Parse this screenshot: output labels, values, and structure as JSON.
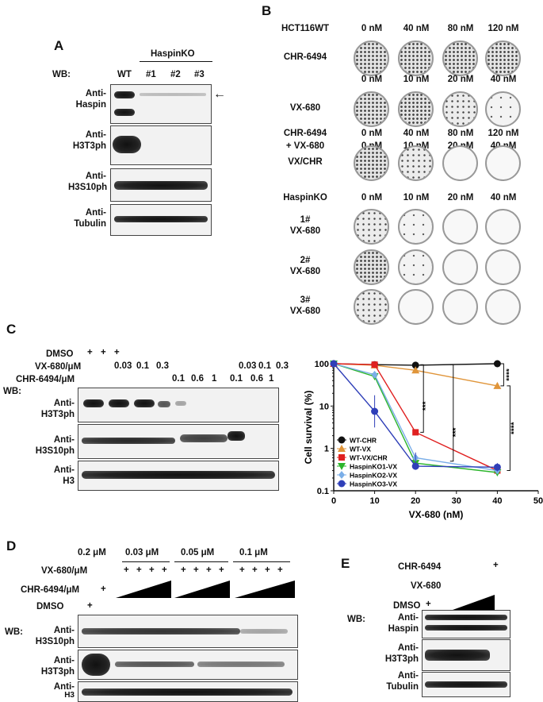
{
  "panels": {
    "A": "A",
    "B": "B",
    "C": "C",
    "D": "D",
    "E": "E"
  },
  "panelA": {
    "group_label": "HaspinKO",
    "lanes": [
      "WT",
      "#1",
      "#2",
      "#3"
    ],
    "wb": "WB:",
    "antibodies": [
      [
        "Anti-",
        "Haspin"
      ],
      [
        "Anti-",
        "H3T3ph"
      ],
      [
        "Anti-",
        "H3S10ph"
      ],
      [
        "Anti-",
        "Tubulin"
      ]
    ],
    "arrow": "←"
  },
  "panelB": {
    "rows": [
      {
        "label": [
          "HCT116WT"
        ],
        "conc": [
          "0 nM",
          "40 nM",
          "80 nM",
          "120 nM"
        ]
      },
      {
        "label": [
          "CHR-6494"
        ],
        "dish": [
          3,
          3,
          3,
          3
        ]
      },
      {
        "label": [],
        "conc": [
          "0 nM",
          "10 nM",
          "20 nM",
          "40 nM"
        ]
      },
      {
        "label": [
          "VX-680"
        ],
        "dish": [
          3,
          3,
          2,
          1
        ]
      },
      {
        "label": [
          "CHR-6494",
          "+ VX-680"
        ],
        "conc": [
          "0 nM",
          "40 nM",
          "80 nM",
          "120 nM"
        ],
        "conc2": [
          "0 nM",
          "10 nM",
          "20 nM",
          "40 nM"
        ]
      },
      {
        "label": [
          "VX/CHR"
        ],
        "dish": [
          3,
          2,
          0,
          0
        ]
      },
      {
        "label": [
          "HaspinKO"
        ],
        "conc": [
          "0 nM",
          "10 nM",
          "20 nM",
          "40 nM"
        ]
      },
      {
        "label": [
          "1#",
          "VX-680"
        ],
        "dish": [
          2,
          1,
          0,
          0
        ]
      },
      {
        "label": [
          "2#",
          "VX-680"
        ],
        "dish": [
          3,
          1,
          0,
          0
        ]
      },
      {
        "label": [
          "3#",
          "VX-680"
        ],
        "dish": [
          2,
          0,
          0,
          0
        ]
      }
    ]
  },
  "panelC": {
    "dmso": "DMSO",
    "vx": "VX-680/μM",
    "chr": "CHR-6494/μM",
    "wb": "WB:",
    "plus": "+",
    "vx_vals": [
      "0.03",
      "0.1",
      "0.3",
      "0.03",
      "0.1",
      "0.3"
    ],
    "chr_vals": [
      "0.1",
      "0.6",
      "1",
      "0.1",
      "0.6",
      "1"
    ],
    "antibodies": [
      [
        "Anti-",
        "H3T3ph"
      ],
      [
        "Anti-",
        "H3S10ph"
      ],
      [
        "Anti-",
        "H3"
      ]
    ]
  },
  "panelD": {
    "top_conc": [
      "0.2 μM",
      "0.03 μM",
      "0.05 μM",
      "0.1 μM"
    ],
    "vx": "VX-680/μM",
    "chr": "CHR-6494/μM",
    "dmso": "DMSO",
    "wb": "WB:",
    "plus": "+",
    "antibodies": [
      [
        "Anti-",
        "H3S10ph"
      ],
      [
        "Anti-",
        "H3T3ph"
      ],
      [
        "Anti-",
        "H3"
      ]
    ]
  },
  "panelE": {
    "chr": "CHR-6494",
    "vx": "VX-680",
    "dmso": "DMSO",
    "wb": "WB:",
    "plus": "+",
    "antibodies": [
      [
        "Anti-",
        "Haspin"
      ],
      [
        "Anti-",
        "H3T3ph"
      ],
      [
        "Anti-",
        "Tubulin"
      ]
    ]
  },
  "chart_data": {
    "type": "line",
    "xlabel": "VX-680 (nM)",
    "ylabel": "Cell survival (%)",
    "xlim": [
      0,
      50
    ],
    "ylim": [
      0.1,
      100
    ],
    "yscale": "log",
    "xticks": [
      0,
      10,
      20,
      30,
      40,
      50
    ],
    "yticks": [
      {
        "v": 0.1,
        "t": "0.1"
      },
      {
        "v": 1,
        "t": "1"
      },
      {
        "v": 10,
        "t": "10"
      },
      {
        "v": 100,
        "t": "100"
      }
    ],
    "legend_position": "lower-left",
    "series": [
      {
        "name": "WT-CHR",
        "color": "#111111",
        "marker": "circle",
        "x": [
          0,
          10,
          20,
          40
        ],
        "y": [
          100,
          95,
          92,
          100
        ]
      },
      {
        "name": "WT-VX",
        "color": "#e0953a",
        "marker": "triangle-up",
        "x": [
          0,
          10,
          20,
          40
        ],
        "y": [
          100,
          92,
          70,
          30
        ]
      },
      {
        "name": "WT-VX/CHR",
        "color": "#e02020",
        "marker": "square",
        "x": [
          0,
          10,
          20,
          40
        ],
        "y": [
          100,
          95,
          2.4,
          0.3
        ]
      },
      {
        "name": "HaspinKO1-VX",
        "color": "#2bb52b",
        "marker": "triangle-down",
        "x": [
          0,
          10,
          20,
          40
        ],
        "y": [
          100,
          50,
          0.45,
          0.27
        ]
      },
      {
        "name": "HaspinKO2-VX",
        "color": "#7aaee8",
        "marker": "diamond",
        "x": [
          0,
          10,
          20,
          40
        ],
        "y": [
          100,
          55,
          0.6,
          0.3
        ]
      },
      {
        "name": "HaspinKO3-VX",
        "color": "#2f3fb8",
        "marker": "circle",
        "x": [
          0,
          10,
          20,
          40
        ],
        "y": [
          100,
          7.5,
          0.38,
          0.36
        ]
      }
    ],
    "annotations": [
      "****",
      "***",
      "***",
      "****"
    ]
  }
}
